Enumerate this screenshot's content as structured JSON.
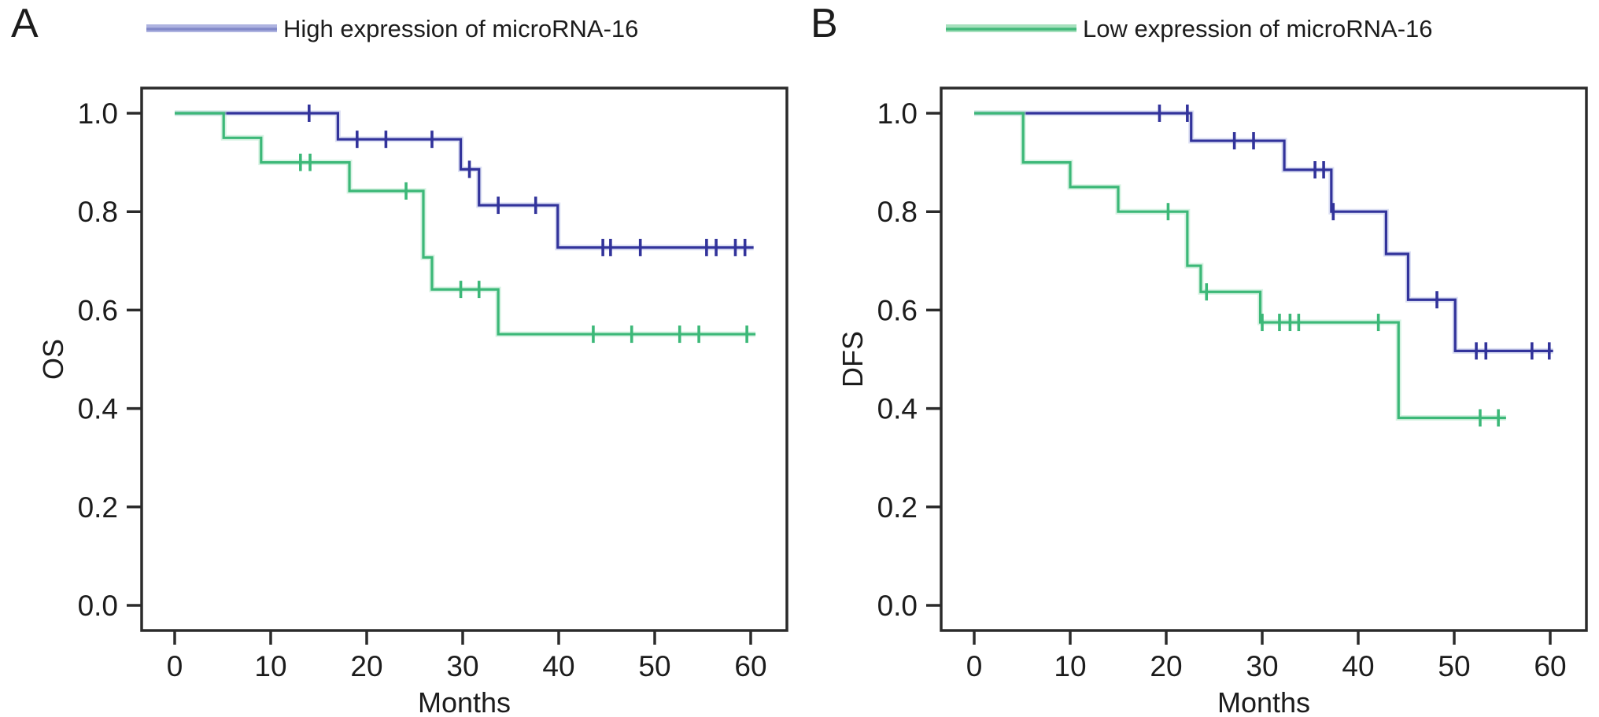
{
  "figure": {
    "background": "#ffffff",
    "text_color": "#1c1c1c",
    "frame_color": "#2b2b2b"
  },
  "chart_data": [
    {
      "panel": "A",
      "type": "line",
      "subtype": "kaplan-meier-step",
      "title": "",
      "xlabel": "Months",
      "ylabel": "OS",
      "xticks": [
        0,
        10,
        20,
        30,
        40,
        50,
        60
      ],
      "ytick_labels": [
        "0.0",
        "0.2",
        "0.4",
        "0.6",
        "0.8",
        "1.0"
      ],
      "yticks": [
        0.0,
        0.2,
        0.4,
        0.6,
        0.8,
        1.0
      ],
      "xlim": [
        -3.5,
        63.8
      ],
      "ylim": [
        -0.05,
        1.05
      ],
      "grid": false,
      "legend_position": "top",
      "legend": {
        "label": "High expression of microRNA-16",
        "halo": "#aeb3e0",
        "core": "#8289c9"
      },
      "series": [
        {
          "name": "High expression of microRNA-16",
          "color": "#32339b",
          "halo": "#bcc2ea",
          "steps": [
            [
              0,
              1.0
            ],
            [
              17.0,
              0.947
            ],
            [
              29.8,
              0.886
            ],
            [
              31.7,
              0.813
            ],
            [
              39.9,
              0.727
            ],
            [
              60.3,
              0.727
            ]
          ],
          "censors": [
            [
              14.0,
              1.0
            ],
            [
              19.0,
              0.947
            ],
            [
              22.0,
              0.947
            ],
            [
              26.8,
              0.947
            ],
            [
              30.7,
              0.886
            ],
            [
              33.7,
              0.813
            ],
            [
              37.6,
              0.813
            ],
            [
              44.6,
              0.727
            ],
            [
              45.4,
              0.727
            ],
            [
              48.5,
              0.727
            ],
            [
              55.4,
              0.727
            ],
            [
              56.4,
              0.727
            ],
            [
              58.4,
              0.727
            ],
            [
              59.4,
              0.727
            ]
          ]
        },
        {
          "name": "Low expression of microRNA-16",
          "color": "#3cb878",
          "halo": "#b5e7cb",
          "steps": [
            [
              0,
              1.0
            ],
            [
              5.1,
              0.95
            ],
            [
              9.0,
              0.9
            ],
            [
              18.2,
              0.842
            ],
            [
              25.9,
              0.707
            ],
            [
              26.8,
              0.642
            ],
            [
              33.7,
              0.551
            ],
            [
              60.5,
              0.551
            ]
          ],
          "censors": [
            [
              13.1,
              0.9
            ],
            [
              14.1,
              0.9
            ],
            [
              24.1,
              0.842
            ],
            [
              29.8,
              0.642
            ],
            [
              31.7,
              0.642
            ],
            [
              43.6,
              0.551
            ],
            [
              47.6,
              0.551
            ],
            [
              52.6,
              0.551
            ],
            [
              54.6,
              0.551
            ],
            [
              59.6,
              0.551
            ]
          ]
        }
      ]
    },
    {
      "panel": "B",
      "type": "line",
      "subtype": "kaplan-meier-step",
      "title": "",
      "xlabel": "Months",
      "ylabel": "DFS",
      "xticks": [
        0,
        10,
        20,
        30,
        40,
        50,
        60
      ],
      "ytick_labels": [
        "0.0",
        "0.2",
        "0.4",
        "0.6",
        "0.8",
        "1.0"
      ],
      "yticks": [
        0.0,
        0.2,
        0.4,
        0.6,
        0.8,
        1.0
      ],
      "xlim": [
        -3.5,
        63.8
      ],
      "ylim": [
        -0.05,
        1.05
      ],
      "grid": false,
      "legend_position": "top",
      "legend": {
        "label": "Low expression of microRNA-16",
        "halo": "#a6e0bd",
        "core": "#43b97b"
      },
      "series": [
        {
          "name": "High expression of microRNA-16",
          "color": "#32339b",
          "halo": "#bcc2ea",
          "steps": [
            [
              0,
              1.0
            ],
            [
              22.6,
              0.944
            ],
            [
              32.3,
              0.885
            ],
            [
              37.2,
              0.8
            ],
            [
              42.9,
              0.714
            ],
            [
              45.2,
              0.621
            ],
            [
              50.1,
              0.517
            ],
            [
              60.3,
              0.517
            ]
          ],
          "censors": [
            [
              19.3,
              1.0
            ],
            [
              22.2,
              1.0
            ],
            [
              27.1,
              0.944
            ],
            [
              29.1,
              0.944
            ],
            [
              35.5,
              0.885
            ],
            [
              36.4,
              0.885
            ],
            [
              37.4,
              0.8
            ],
            [
              48.2,
              0.621
            ],
            [
              52.3,
              0.517
            ],
            [
              53.3,
              0.517
            ],
            [
              58.1,
              0.517
            ],
            [
              59.9,
              0.517
            ]
          ]
        },
        {
          "name": "Low expression of microRNA-16",
          "color": "#3cb878",
          "halo": "#b5e7cb",
          "steps": [
            [
              0,
              1.0
            ],
            [
              5.1,
              0.9
            ],
            [
              10.0,
              0.85
            ],
            [
              15.0,
              0.8
            ],
            [
              22.2,
              0.69
            ],
            [
              23.6,
              0.637
            ],
            [
              29.8,
              0.575
            ],
            [
              44.2,
              0.381
            ],
            [
              55.4,
              0.381
            ]
          ],
          "censors": [
            [
              20.2,
              0.8
            ],
            [
              24.2,
              0.637
            ],
            [
              30.0,
              0.575
            ],
            [
              31.8,
              0.575
            ],
            [
              32.9,
              0.575
            ],
            [
              33.8,
              0.575
            ],
            [
              42.1,
              0.575
            ],
            [
              52.7,
              0.381
            ],
            [
              54.6,
              0.381
            ]
          ]
        }
      ]
    }
  ]
}
